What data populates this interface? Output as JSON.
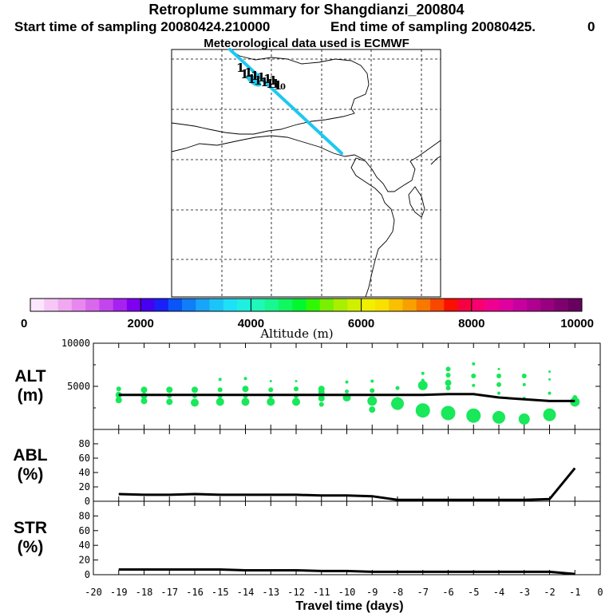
{
  "header": {
    "title": "Retroplume summary for Shangdianzi_200804",
    "start_time": "Start time of sampling 20080424.210000",
    "end_time": "End time of sampling 20080425.",
    "end_time_suffix": "0",
    "met_data": "Meteorological data used is ECMWF"
  },
  "map": {
    "plume_color": "#1ec8f0",
    "cluster_labels": [
      "1",
      "1",
      "1",
      "1",
      "1",
      "1",
      "1",
      "1",
      "1",
      "1",
      "1",
      "1",
      "1",
      "10"
    ]
  },
  "colorbar": {
    "tick_labels": [
      "0",
      "2000",
      "4000",
      "6000",
      "8000",
      "10000"
    ],
    "ticks": [
      0,
      2000,
      4000,
      6000,
      8000,
      10000
    ],
    "label": "Altitude (m)",
    "colors": [
      "#fde6fd",
      "#f7c7f7",
      "#f0a8f0",
      "#e888ef",
      "#d968ec",
      "#c245ee",
      "#a622f0",
      "#7f00f0",
      "#4800f0",
      "#1a20f8",
      "#0a55f8",
      "#0f7ef8",
      "#18a4f8",
      "#1cc5f8",
      "#1ee0f8",
      "#1ef0e0",
      "#1ef8b8",
      "#18f890",
      "#10f860",
      "#00f830",
      "#30f800",
      "#78f000",
      "#a8f000",
      "#d0f000",
      "#f0f000",
      "#f8e000",
      "#f8c000",
      "#f8a000",
      "#f87800",
      "#f84800",
      "#f81000",
      "#f80040",
      "#f80070",
      "#f00090",
      "#e000a0",
      "#c800a0",
      "#b00090",
      "#980080",
      "#800070",
      "#680060"
    ]
  },
  "chart_data": [
    {
      "type": "scatter",
      "name": "ALT",
      "ylabel": "ALT (m)",
      "ylabel_line1": "ALT",
      "ylabel_line2": "(m)",
      "ylim": [
        0,
        10000
      ],
      "yticks": [
        0,
        5000,
        10000
      ],
      "ytick_labels": [
        "",
        "5000",
        "10000"
      ],
      "xlim": [
        -20,
        0
      ],
      "marker_color": "#18e85a",
      "mean_line": {
        "x": [
          -19,
          -18,
          -17,
          -16,
          -15,
          -14,
          -13,
          -12,
          -11,
          -10,
          -9,
          -8,
          -7,
          -6,
          -5,
          -4,
          -3,
          -2,
          -1
        ],
        "y": [
          4000,
          4000,
          4000,
          4000,
          4000,
          4000,
          4000,
          4000,
          4000,
          4000,
          4000,
          4000,
          4000,
          4100,
          4100,
          3700,
          3500,
          3300,
          3300
        ]
      },
      "points": [
        {
          "x": -19,
          "y": 4700,
          "s": 3
        },
        {
          "x": -19,
          "y": 4000,
          "s": 4
        },
        {
          "x": -19,
          "y": 3400,
          "s": 4
        },
        {
          "x": -18,
          "y": 4600,
          "s": 4
        },
        {
          "x": -18,
          "y": 3900,
          "s": 4
        },
        {
          "x": -18,
          "y": 3300,
          "s": 4
        },
        {
          "x": -17,
          "y": 4600,
          "s": 4
        },
        {
          "x": -17,
          "y": 3900,
          "s": 3
        },
        {
          "x": -17,
          "y": 3200,
          "s": 4
        },
        {
          "x": -16,
          "y": 4600,
          "s": 4
        },
        {
          "x": -16,
          "y": 3900,
          "s": 3
        },
        {
          "x": -16,
          "y": 3100,
          "s": 5
        },
        {
          "x": -15,
          "y": 5800,
          "s": 2
        },
        {
          "x": -15,
          "y": 4600,
          "s": 3
        },
        {
          "x": -15,
          "y": 3900,
          "s": 3
        },
        {
          "x": -15,
          "y": 3200,
          "s": 5
        },
        {
          "x": -14,
          "y": 5900,
          "s": 2
        },
        {
          "x": -14,
          "y": 4700,
          "s": 4
        },
        {
          "x": -14,
          "y": 3900,
          "s": 3
        },
        {
          "x": -14,
          "y": 3200,
          "s": 5
        },
        {
          "x": -13,
          "y": 5600,
          "s": 1.5
        },
        {
          "x": -13,
          "y": 4600,
          "s": 3
        },
        {
          "x": -13,
          "y": 3900,
          "s": 3
        },
        {
          "x": -13,
          "y": 3200,
          "s": 5
        },
        {
          "x": -12,
          "y": 5600,
          "s": 1.5
        },
        {
          "x": -12,
          "y": 4700,
          "s": 3
        },
        {
          "x": -12,
          "y": 3900,
          "s": 3
        },
        {
          "x": -12,
          "y": 3200,
          "s": 5
        },
        {
          "x": -11,
          "y": 4700,
          "s": 4
        },
        {
          "x": -11,
          "y": 4300,
          "s": 4
        },
        {
          "x": -11,
          "y": 3600,
          "s": 4
        },
        {
          "x": -11,
          "y": 2900,
          "s": 3
        },
        {
          "x": -10,
          "y": 5500,
          "s": 2
        },
        {
          "x": -10,
          "y": 4400,
          "s": 2.5
        },
        {
          "x": -10,
          "y": 3700,
          "s": 5
        },
        {
          "x": -9,
          "y": 5600,
          "s": 2
        },
        {
          "x": -9,
          "y": 4500,
          "s": 3
        },
        {
          "x": -9,
          "y": 3300,
          "s": 6
        },
        {
          "x": -9,
          "y": 2300,
          "s": 4
        },
        {
          "x": -8,
          "y": 4800,
          "s": 2.5
        },
        {
          "x": -8,
          "y": 3500,
          "s": 3
        },
        {
          "x": -8,
          "y": 3000,
          "s": 8
        },
        {
          "x": -7,
          "y": 6500,
          "s": 2
        },
        {
          "x": -7,
          "y": 5700,
          "s": 2
        },
        {
          "x": -7,
          "y": 5100,
          "s": 6
        },
        {
          "x": -7,
          "y": 2200,
          "s": 9
        },
        {
          "x": -6,
          "y": 7000,
          "s": 3
        },
        {
          "x": -6,
          "y": 6300,
          "s": 3
        },
        {
          "x": -6,
          "y": 5400,
          "s": 4
        },
        {
          "x": -6,
          "y": 4800,
          "s": 3
        },
        {
          "x": -6,
          "y": 1900,
          "s": 9
        },
        {
          "x": -5,
          "y": 7600,
          "s": 2
        },
        {
          "x": -5,
          "y": 6200,
          "s": 3
        },
        {
          "x": -5,
          "y": 5100,
          "s": 2
        },
        {
          "x": -5,
          "y": 1600,
          "s": 9
        },
        {
          "x": -4,
          "y": 7000,
          "s": 1.5
        },
        {
          "x": -4,
          "y": 6200,
          "s": 3
        },
        {
          "x": -4,
          "y": 5200,
          "s": 3
        },
        {
          "x": -4,
          "y": 4200,
          "s": 2
        },
        {
          "x": -4,
          "y": 1400,
          "s": 8
        },
        {
          "x": -3,
          "y": 6200,
          "s": 3
        },
        {
          "x": -3,
          "y": 5200,
          "s": 2
        },
        {
          "x": -3,
          "y": 3600,
          "s": 2
        },
        {
          "x": -3,
          "y": 1200,
          "s": 7
        },
        {
          "x": -2,
          "y": 6700,
          "s": 1.5
        },
        {
          "x": -2,
          "y": 5800,
          "s": 1.5
        },
        {
          "x": -2,
          "y": 4200,
          "s": 2
        },
        {
          "x": -2,
          "y": 1700,
          "s": 8
        },
        {
          "x": -1,
          "y": 3700,
          "s": 3
        },
        {
          "x": -1,
          "y": 3200,
          "s": 6
        }
      ]
    },
    {
      "type": "line",
      "name": "ABL",
      "ylabel": "ABL (%)",
      "ylabel_line1": "ABL",
      "ylabel_line2": "(%)",
      "ylim": [
        0,
        100
      ],
      "yticks": [
        0,
        20,
        40,
        60,
        80
      ],
      "ytick_labels": [
        "0",
        "20",
        "40",
        "60",
        "80"
      ],
      "xlim": [
        -20,
        0
      ],
      "x": [
        -19,
        -18,
        -17,
        -16,
        -15,
        -14,
        -13,
        -12,
        -11,
        -10,
        -9,
        -8,
        -7,
        -6,
        -5,
        -4,
        -3,
        -2,
        -1
      ],
      "y": [
        10,
        9,
        9,
        10,
        9,
        9,
        9,
        9,
        8,
        8,
        7,
        2,
        2,
        2,
        2,
        2,
        2,
        3,
        46
      ]
    },
    {
      "type": "line",
      "name": "STR",
      "ylabel": "STR (%)",
      "ylabel_line1": "STR",
      "ylabel_line2": "(%)",
      "ylim": [
        0,
        100
      ],
      "yticks": [
        0,
        20,
        40,
        60,
        80
      ],
      "ytick_labels": [
        "0",
        "20",
        "40",
        "60",
        "80"
      ],
      "xlim": [
        -20,
        0
      ],
      "xticks": [
        -20,
        -19,
        -18,
        -17,
        -16,
        -15,
        -14,
        -13,
        -12,
        -11,
        -10,
        -9,
        -8,
        -7,
        -6,
        -5,
        -4,
        -3,
        -2,
        -1,
        0
      ],
      "xtick_labels": [
        "-20",
        "-19",
        "-18",
        "-17",
        "-16",
        "-15",
        "-14",
        "-13",
        "-12",
        "-11",
        "-10",
        "-9",
        "-8",
        "-7",
        "-6",
        "-5",
        "-4",
        "-3",
        "-2",
        "-1",
        "0"
      ],
      "xlabel": "Travel time (days)",
      "x": [
        -19,
        -18,
        -17,
        -16,
        -15,
        -14,
        -13,
        -12,
        -11,
        -10,
        -9,
        -8,
        -7,
        -6,
        -5,
        -4,
        -3,
        -2,
        -1
      ],
      "y": [
        7,
        7,
        7,
        7,
        7,
        6,
        6,
        6,
        5,
        5,
        4,
        4,
        4,
        4,
        4,
        4,
        4,
        4,
        1
      ]
    }
  ]
}
